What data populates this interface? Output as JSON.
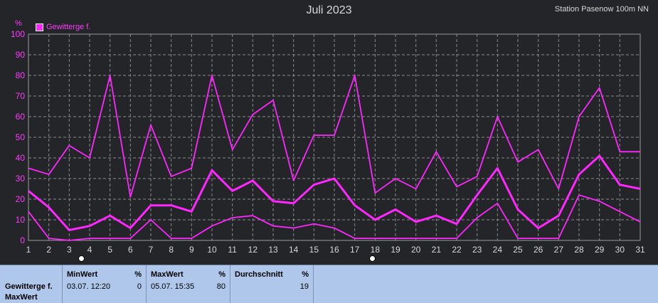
{
  "header": {
    "title": "Juli 2023",
    "station": "Station Pasenow 100m NN",
    "unit": "%",
    "legend_label": "Gewitterge f."
  },
  "colors": {
    "background": "#232528",
    "line": "#ff26ff",
    "grid": "#8a8a8a",
    "panel": "#aec7eb"
  },
  "chart_data": {
    "type": "line",
    "title": "Juli 2023",
    "ylabel": "%",
    "ylim": [
      0,
      100
    ],
    "yticks": [
      0,
      10,
      20,
      30,
      40,
      50,
      60,
      70,
      80,
      90,
      100
    ],
    "x": [
      1,
      2,
      3,
      4,
      5,
      6,
      7,
      8,
      9,
      10,
      11,
      12,
      13,
      14,
      15,
      16,
      17,
      18,
      19,
      20,
      21,
      22,
      23,
      24,
      25,
      26,
      27,
      28,
      29,
      30,
      31
    ],
    "grid": true,
    "legend": "top-left",
    "series": [
      {
        "name": "Gewittergef.",
        "role": "max",
        "values": [
          35,
          32,
          46,
          40,
          80,
          21,
          56,
          31,
          35,
          80,
          44,
          61,
          68,
          29,
          51,
          51,
          80,
          23,
          30,
          25,
          43,
          26,
          31,
          60,
          38,
          44,
          25,
          60,
          74,
          43,
          43
        ]
      },
      {
        "name": "Gewittergef.",
        "role": "mean",
        "values": [
          24,
          16,
          5,
          7,
          12,
          6,
          17,
          17,
          14,
          34,
          24,
          29,
          19,
          18,
          27,
          30,
          17,
          10,
          15,
          9,
          12,
          8,
          22,
          35,
          15,
          6,
          12,
          32,
          41,
          27,
          25
        ]
      },
      {
        "name": "Gewittergef.",
        "role": "min",
        "values": [
          14,
          1,
          0,
          1,
          1,
          1,
          10,
          1,
          1,
          7,
          11,
          12,
          7,
          6,
          8,
          6,
          1,
          1,
          1,
          1,
          1,
          1,
          11,
          18,
          1,
          1,
          1,
          22,
          19,
          14,
          9
        ]
      }
    ]
  },
  "footer": {
    "row_label_1": "Gewitterge f.",
    "row_label_2": "MaxWert",
    "min": {
      "header": "MinWert",
      "pct": "%",
      "date": "03.07.  12:20",
      "value": "0"
    },
    "max": {
      "header": "MaxWert",
      "pct": "%",
      "date": "05.07.  15:35",
      "value": "80"
    },
    "avg": {
      "header": "Durchschnitt",
      "pct": "%",
      "value": "19"
    }
  }
}
